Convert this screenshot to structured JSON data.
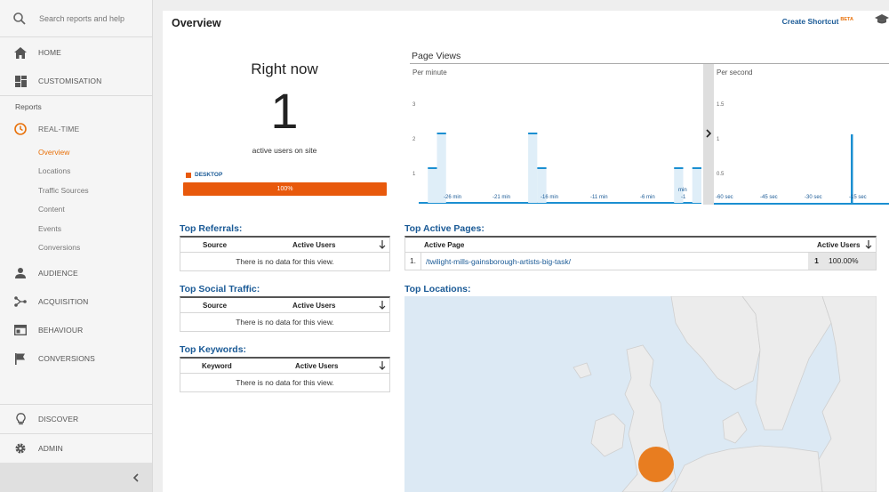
{
  "sidebar": {
    "search_placeholder": "Search reports and help",
    "home": "HOME",
    "customisation": "CUSTOMISATION",
    "reports_label": "Reports",
    "realtime": "REAL-TIME",
    "realtime_items": [
      "Overview",
      "Locations",
      "Traffic Sources",
      "Content",
      "Events",
      "Conversions"
    ],
    "audience": "AUDIENCE",
    "acquisition": "ACQUISITION",
    "behaviour": "BEHAVIOUR",
    "conversions": "CONVERSIONS",
    "discover": "DISCOVER",
    "admin": "ADMIN",
    "collapse_icon": "chevron-left-icon"
  },
  "header": {
    "title": "Overview",
    "shortcut_label": "Create Shortcut",
    "shortcut_badge": "BETA",
    "shortcut_icon": "graduation-cap-icon"
  },
  "right_now": {
    "title": "Right now",
    "count": "1",
    "subtitle": "active users on site",
    "device_label": "DESKTOP",
    "device_percent": "100%",
    "device_fraction": 1.0,
    "device_color": "#e8590c"
  },
  "page_views": {
    "title": "Page Views",
    "per_minute": {
      "label": "Per minute",
      "y_ticks": [
        "3",
        "2",
        "1"
      ],
      "x_ticks": [
        "-26 min",
        "-21 min",
        "-16 min",
        "-11 min",
        "-6 min",
        "-1",
        "min"
      ],
      "values": [
        0,
        1,
        2,
        0,
        0,
        0,
        0,
        0,
        0,
        0,
        0,
        0,
        2,
        1,
        0,
        0,
        0,
        0,
        0,
        0,
        0,
        0,
        0,
        0,
        0,
        0,
        0,
        0,
        1,
        0,
        1
      ]
    },
    "per_second": {
      "label": "Per second",
      "y_ticks": [
        "1.5",
        "1",
        "0.5"
      ],
      "x_ticks": [
        "-60 sec",
        "-45 sec",
        "-30 sec",
        "-15 sec"
      ]
    }
  },
  "top_referrals": {
    "title": "Top Referrals:",
    "columns": [
      "Source",
      "Active Users"
    ],
    "empty": "There is no data for this view."
  },
  "top_social": {
    "title": "Top Social Traffic:",
    "columns": [
      "Source",
      "Active Users"
    ],
    "empty": "There is no data for this view."
  },
  "top_keywords": {
    "title": "Top Keywords:",
    "columns": [
      "Keyword",
      "Active Users"
    ],
    "empty": "There is no data for this view."
  },
  "top_active_pages": {
    "title": "Top Active Pages:",
    "columns": [
      "Active Page",
      "Active Users"
    ],
    "rows": [
      {
        "index": "1.",
        "page": "/twilight-mills-gainsborough-artists-big-task/",
        "users": "1",
        "percent": "100.00%"
      }
    ]
  },
  "top_locations": {
    "title": "Top Locations:",
    "marker_color": "#e8710a"
  },
  "colors": {
    "accent": "#e8710a",
    "link": "#1a5a96",
    "bar": "#1b8fd1"
  }
}
